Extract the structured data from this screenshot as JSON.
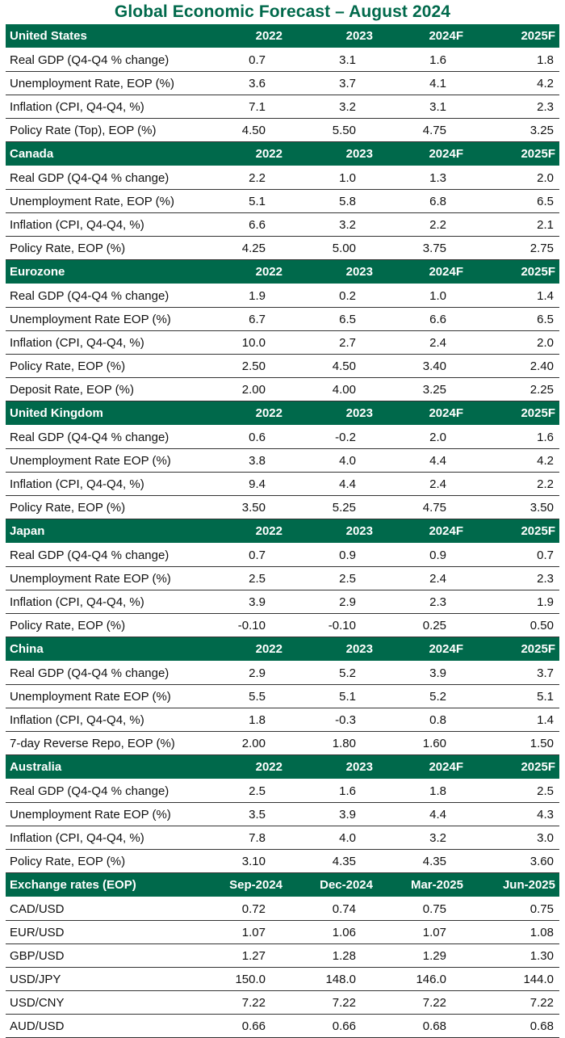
{
  "title": "Global Economic Forecast – August 2024",
  "colors": {
    "header_bg": "#00694b",
    "title": "#00694b"
  },
  "sections": [
    {
      "name": "United States",
      "headers": [
        "2022",
        "2023",
        "2024F",
        "2025F"
      ],
      "rows": [
        {
          "label": "Real GDP (Q4-Q4 % change)",
          "values": [
            "0.7",
            "3.1",
            "1.6",
            "1.8"
          ]
        },
        {
          "label": "Unemployment Rate, EOP (%)",
          "values": [
            "3.6",
            "3.7",
            "4.1",
            "4.2"
          ]
        },
        {
          "label": "Inflation (CPI, Q4-Q4, %)",
          "values": [
            "7.1",
            "3.2",
            "3.1",
            "2.3"
          ]
        },
        {
          "label": "Policy Rate (Top), EOP (%)",
          "values": [
            "4.50",
            "5.50",
            "4.75",
            "3.25"
          ]
        }
      ]
    },
    {
      "name": "Canada",
      "headers": [
        "2022",
        "2023",
        "2024F",
        "2025F"
      ],
      "rows": [
        {
          "label": "Real GDP (Q4-Q4 % change)",
          "values": [
            "2.2",
            "1.0",
            "1.3",
            "2.0"
          ]
        },
        {
          "label": "Unemployment Rate, EOP (%)",
          "values": [
            "5.1",
            "5.8",
            "6.8",
            "6.5"
          ]
        },
        {
          "label": "Inflation (CPI, Q4-Q4, %)",
          "values": [
            "6.6",
            "3.2",
            "2.2",
            "2.1"
          ]
        },
        {
          "label": "Policy Rate, EOP (%)",
          "values": [
            "4.25",
            "5.00",
            "3.75",
            "2.75"
          ]
        }
      ]
    },
    {
      "name": "Eurozone",
      "headers": [
        "2022",
        "2023",
        "2024F",
        "2025F"
      ],
      "rows": [
        {
          "label": "Real GDP (Q4-Q4 % change)",
          "values": [
            "1.9",
            "0.2",
            "1.0",
            "1.4"
          ]
        },
        {
          "label": "Unemployment Rate EOP (%)",
          "values": [
            "6.7",
            "6.5",
            "6.6",
            "6.5"
          ]
        },
        {
          "label": "Inflation (CPI, Q4-Q4, %)",
          "values": [
            "10.0",
            "2.7",
            "2.4",
            "2.0"
          ]
        },
        {
          "label": "Policy Rate, EOP (%)",
          "values": [
            "2.50",
            "4.50",
            "3.40",
            "2.40"
          ]
        },
        {
          "label": "Deposit Rate, EOP (%)",
          "values": [
            "2.00",
            "4.00",
            "3.25",
            "2.25"
          ]
        }
      ]
    },
    {
      "name": "United Kingdom",
      "headers": [
        "2022",
        "2023",
        "2024F",
        "2025F"
      ],
      "rows": [
        {
          "label": "Real GDP (Q4-Q4 % change)",
          "values": [
            "0.6",
            "-0.2",
            "2.0",
            "1.6"
          ]
        },
        {
          "label": "Unemployment Rate EOP (%)",
          "values": [
            "3.8",
            "4.0",
            "4.4",
            "4.2"
          ]
        },
        {
          "label": "Inflation (CPI, Q4-Q4, %)",
          "values": [
            "9.4",
            "4.4",
            "2.4",
            "2.2"
          ]
        },
        {
          "label": "Policy Rate, EOP (%)",
          "values": [
            "3.50",
            "5.25",
            "4.75",
            "3.50"
          ]
        }
      ]
    },
    {
      "name": "Japan",
      "headers": [
        "2022",
        "2023",
        "2024F",
        "2025F"
      ],
      "rows": [
        {
          "label": "Real GDP (Q4-Q4 % change)",
          "values": [
            "0.7",
            "0.9",
            "0.9",
            "0.7"
          ]
        },
        {
          "label": "Unemployment Rate EOP (%)",
          "values": [
            "2.5",
            "2.5",
            "2.4",
            "2.3"
          ]
        },
        {
          "label": "Inflation (CPI, Q4-Q4, %)",
          "values": [
            "3.9",
            "2.9",
            "2.3",
            "1.9"
          ]
        },
        {
          "label": "Policy Rate, EOP (%)",
          "values": [
            "-0.10",
            "-0.10",
            "0.25",
            "0.50"
          ]
        }
      ]
    },
    {
      "name": "China",
      "headers": [
        "2022",
        "2023",
        "2024F",
        "2025F"
      ],
      "rows": [
        {
          "label": "Real GDP (Q4-Q4 % change)",
          "values": [
            "2.9",
            "5.2",
            "3.9",
            "3.7"
          ]
        },
        {
          "label": "Unemployment Rate EOP (%)",
          "values": [
            "5.5",
            "5.1",
            "5.2",
            "5.1"
          ]
        },
        {
          "label": "Inflation (CPI, Q4-Q4, %)",
          "values": [
            "1.8",
            "-0.3",
            "0.8",
            "1.4"
          ]
        },
        {
          "label": "7-day Reverse Repo, EOP (%)",
          "values": [
            "2.00",
            "1.80",
            "1.60",
            "1.50"
          ]
        }
      ]
    },
    {
      "name": "Australia",
      "headers": [
        "2022",
        "2023",
        "2024F",
        "2025F"
      ],
      "rows": [
        {
          "label": "Real GDP (Q4-Q4 % change)",
          "values": [
            "2.5",
            "1.6",
            "1.8",
            "2.5"
          ]
        },
        {
          "label": "Unemployment Rate EOP (%)",
          "values": [
            "3.5",
            "3.9",
            "4.4",
            "4.3"
          ]
        },
        {
          "label": "Inflation (CPI, Q4-Q4, %)",
          "values": [
            "7.8",
            "4.0",
            "3.2",
            "3.0"
          ]
        },
        {
          "label": "Policy Rate, EOP (%)",
          "values": [
            "3.10",
            "4.35",
            "4.35",
            "3.60"
          ]
        }
      ]
    },
    {
      "name": "Exchange rates (EOP)",
      "headers": [
        "Sep-2024",
        "Dec-2024",
        "Mar-2025",
        "Jun-2025"
      ],
      "rows": [
        {
          "label": "CAD/USD",
          "values": [
            "0.72",
            "0.74",
            "0.75",
            "0.75"
          ]
        },
        {
          "label": "EUR/USD",
          "values": [
            "1.07",
            "1.06",
            "1.07",
            "1.08"
          ]
        },
        {
          "label": "GBP/USD",
          "values": [
            "1.27",
            "1.28",
            "1.29",
            "1.30"
          ]
        },
        {
          "label": "USD/JPY",
          "values": [
            "150.0",
            "148.0",
            "146.0",
            "144.0"
          ]
        },
        {
          "label": "USD/CNY",
          "values": [
            "7.22",
            "7.22",
            "7.22",
            "7.22"
          ]
        },
        {
          "label": "AUD/USD",
          "values": [
            "0.66",
            "0.66",
            "0.68",
            "0.68"
          ]
        }
      ]
    }
  ]
}
